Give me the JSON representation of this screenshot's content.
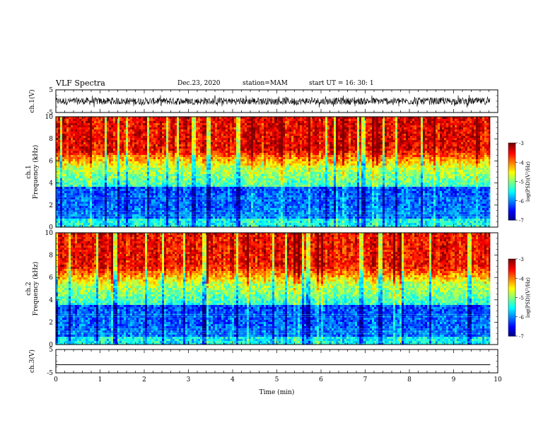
{
  "header": {
    "title": "VLF Spectra",
    "date": "Dec.23, 2020",
    "station": "station=MAM",
    "start": "start UT = 16: 30: 1"
  },
  "chart_data": [
    {
      "type": "line",
      "panel": "ch.1 waveform",
      "ylabel": "ch.1(V)",
      "yticks": [
        "5",
        "-5"
      ],
      "ylim": [
        -5,
        5
      ],
      "description_values": {
        "typical_range": [
          -1.5,
          1.5
        ]
      }
    },
    {
      "type": "heatmap",
      "panel": "ch.1 spectrogram",
      "ylabel_line1": "ch.1",
      "ylabel_line2": "Frequency (kHz)",
      "yticks": [
        "0",
        "2",
        "4",
        "6",
        "8",
        "10"
      ],
      "ylim": [
        0,
        10
      ],
      "colorbar": {
        "label": "log(PSD)(V²/Hz)",
        "ticks": [
          "-3",
          "-4",
          "-5",
          "-6",
          "-7"
        ],
        "range": [
          -7,
          -3
        ]
      }
    },
    {
      "type": "heatmap",
      "panel": "ch.2 spectrogram",
      "ylabel_line1": "ch.2",
      "ylabel_line2": "Frequency (kHz)",
      "yticks": [
        "0",
        "2",
        "4",
        "6",
        "8",
        "10"
      ],
      "ylim": [
        0,
        10
      ],
      "colorbar": {
        "label": "log(PSD)(V²/Hz)",
        "ticks": [
          "-3",
          "-4",
          "-5",
          "-6",
          "-7"
        ],
        "range": [
          -7,
          -3
        ]
      }
    },
    {
      "type": "line",
      "panel": "ch.3 waveform",
      "ylabel": "ch.3(V)",
      "yticks": [
        "5",
        "-5"
      ],
      "ylim": [
        -5,
        5
      ],
      "series": [
        {
          "values": [
            -1.5
          ]
        }
      ]
    }
  ],
  "xaxis": {
    "label": "Time (min)",
    "ticks": [
      "0",
      "1",
      "2",
      "3",
      "4",
      "5",
      "6",
      "7",
      "8",
      "9",
      "10"
    ],
    "xlim": [
      0,
      10
    ],
    "data_end": 9.83
  },
  "colors": {
    "waveform": "#000000",
    "axis": "#000000"
  }
}
